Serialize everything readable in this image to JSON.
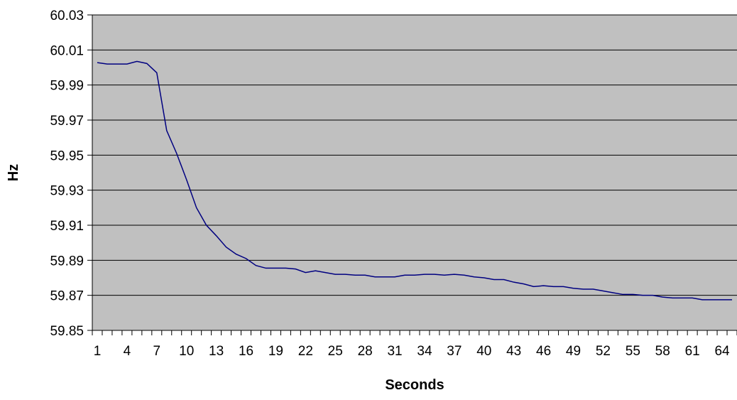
{
  "chart_data": {
    "type": "line",
    "title": "",
    "xlabel": "Seconds",
    "ylabel": "Hz",
    "ylim": [
      59.85,
      60.03
    ],
    "yticks": [
      "59.85",
      "59.87",
      "59.89",
      "59.91",
      "59.93",
      "59.95",
      "59.97",
      "59.99",
      "60.01",
      "60.03"
    ],
    "xtick_labels": [
      "1",
      "4",
      "7",
      "10",
      "13",
      "16",
      "19",
      "22",
      "25",
      "28",
      "31",
      "34",
      "37",
      "40",
      "43",
      "46",
      "49",
      "52",
      "55",
      "58",
      "61",
      "64"
    ],
    "x": [
      1,
      2,
      3,
      4,
      5,
      6,
      7,
      8,
      9,
      10,
      11,
      12,
      13,
      14,
      15,
      16,
      17,
      18,
      19,
      20,
      21,
      22,
      23,
      24,
      25,
      26,
      27,
      28,
      29,
      30,
      31,
      32,
      33,
      34,
      35,
      36,
      37,
      38,
      39,
      40,
      41,
      42,
      43,
      44,
      45,
      46,
      47,
      48,
      49,
      50,
      51,
      52,
      53,
      54,
      55,
      56,
      57,
      58,
      59,
      60,
      61,
      62,
      63,
      64,
      65
    ],
    "series": [
      {
        "values": [
          60.0028,
          60.002,
          60.002,
          60.002,
          60.0035,
          60.0023,
          59.997,
          59.964,
          59.951,
          59.936,
          59.92,
          59.91,
          59.904,
          59.8975,
          59.8935,
          59.891,
          59.887,
          59.8855,
          59.8855,
          59.8855,
          59.885,
          59.883,
          59.884,
          59.883,
          59.882,
          59.882,
          59.8815,
          59.8815,
          59.8805,
          59.8805,
          59.8805,
          59.8815,
          59.8815,
          59.882,
          59.882,
          59.8815,
          59.882,
          59.8815,
          59.8805,
          59.88,
          59.879,
          59.879,
          59.8775,
          59.8765,
          59.875,
          59.8755,
          59.875,
          59.875,
          59.874,
          59.8735,
          59.8735,
          59.8725,
          59.8715,
          59.8705,
          59.8705,
          59.87,
          59.87,
          59.869,
          59.8685,
          59.8685,
          59.8685,
          59.8675,
          59.8675,
          59.8675,
          59.8675
        ]
      }
    ],
    "grid": true,
    "colors": {
      "plot_bg": "#c0c0c0",
      "line": "#000080",
      "gridline": "#000000"
    }
  }
}
